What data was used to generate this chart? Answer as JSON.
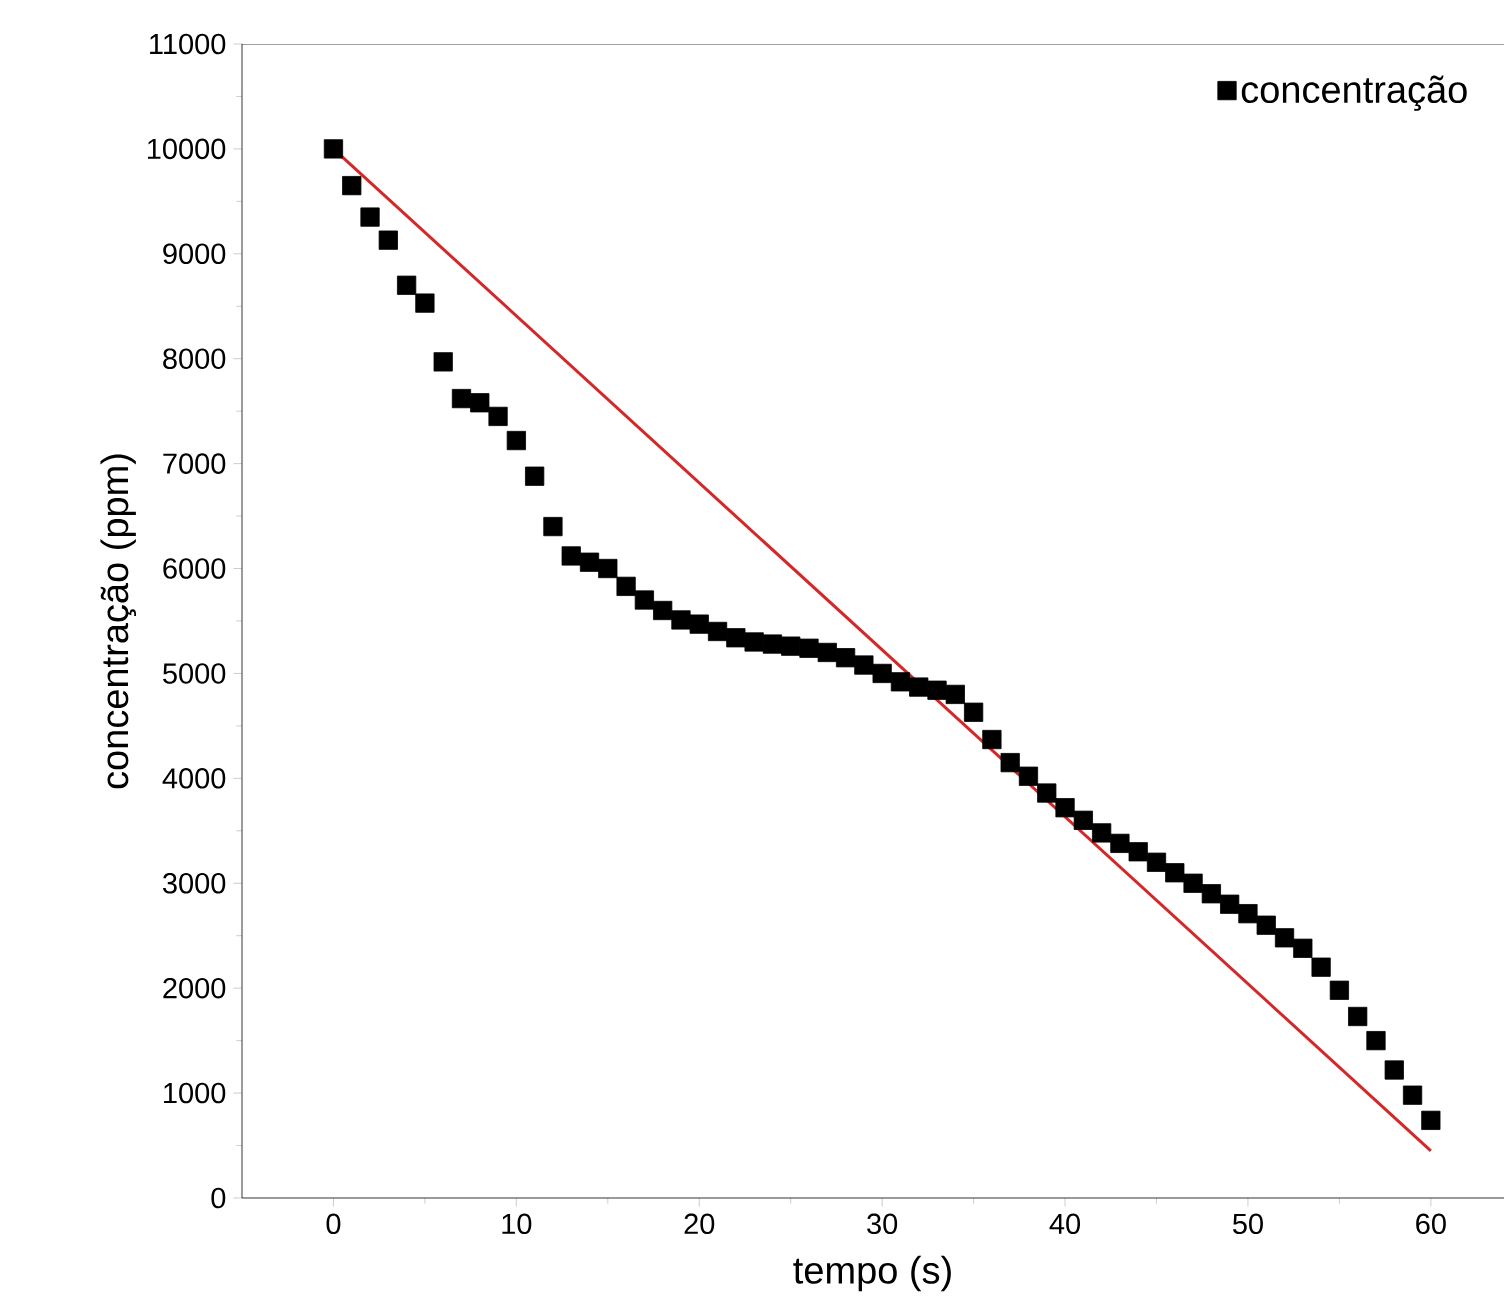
{
  "chart_data": {
    "type": "scatter",
    "xlabel": "tempo (s)",
    "ylabel": "concentração (ppm)",
    "xlim": [
      -5,
      64
    ],
    "ylim": [
      0,
      11000
    ],
    "xticks": [
      0,
      10,
      20,
      30,
      40,
      50,
      60
    ],
    "yticks": [
      0,
      1000,
      2000,
      3000,
      4000,
      5000,
      6000,
      7000,
      8000,
      9000,
      10000,
      11000
    ],
    "legend": "top right",
    "grid": false,
    "series": [
      {
        "name": "concentração",
        "color": "#000000",
        "marker": "square",
        "x": [
          0,
          1,
          2,
          3,
          4,
          5,
          6,
          7,
          8,
          9,
          10,
          11,
          12,
          13,
          14,
          15,
          16,
          17,
          18,
          19,
          20,
          21,
          22,
          23,
          24,
          25,
          26,
          27,
          28,
          29,
          30,
          31,
          32,
          33,
          34,
          35,
          36,
          37,
          38,
          39,
          40,
          41,
          42,
          43,
          44,
          45,
          46,
          47,
          48,
          49,
          50,
          51,
          52,
          53,
          54,
          55,
          56,
          57,
          58,
          59,
          60
        ],
        "values": [
          10000,
          9650,
          9350,
          9130,
          8700,
          8530,
          7970,
          7620,
          7580,
          7450,
          7220,
          6880,
          6400,
          6120,
          6060,
          6000,
          5830,
          5700,
          5600,
          5510,
          5470,
          5400,
          5340,
          5300,
          5280,
          5260,
          5240,
          5200,
          5150,
          5080,
          5000,
          4920,
          4870,
          4840,
          4800,
          4630,
          4370,
          4150,
          4020,
          3860,
          3720,
          3600,
          3480,
          3380,
          3300,
          3200,
          3100,
          3000,
          2900,
          2800,
          2710,
          2600,
          2480,
          2380,
          2200,
          1980,
          1730,
          1500,
          1220,
          980,
          740
        ]
      },
      {
        "color": "#d62728",
        "type": "line",
        "marker": "none",
        "x": [
          0,
          60
        ],
        "values": [
          10000,
          450
        ]
      }
    ]
  }
}
